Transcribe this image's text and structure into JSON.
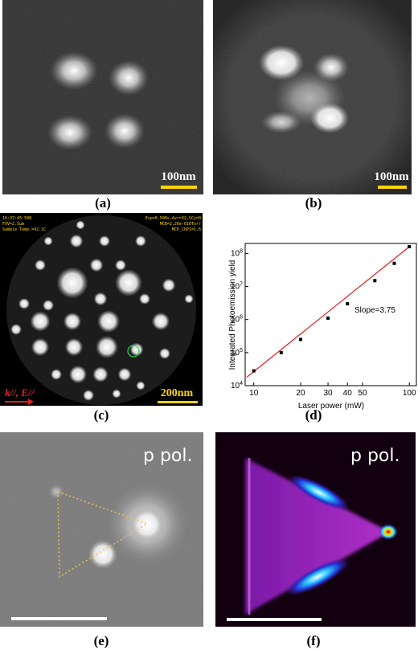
{
  "panels": {
    "a": {
      "label": "(a)",
      "scale_bar": "100nm"
    },
    "b": {
      "label": "(b)",
      "scale_bar": "100nm"
    },
    "c": {
      "label": "(c)",
      "scale_bar": "200nm",
      "direction": "k//, E//",
      "header": [
        "16:37:45:598",
        "FOV=2.5µm",
        "Sample Temp.=42.1C",
        "Exp=0.500s,Avr=32,SCy=0",
        "MCB=2.26e-010Torr",
        "MCP_ChP1=1.6"
      ]
    },
    "d": {
      "label": "(d)"
    },
    "e": {
      "label": "(e)",
      "polarization": "p pol."
    },
    "f": {
      "label": "(f)",
      "polarization": "p pol."
    }
  },
  "chart_data": {
    "type": "scatter",
    "x_label": "Laser power (mW)",
    "y_label": "Integrated Photoemission yield",
    "annotation": "Slope=3.75",
    "x": [
      10,
      15,
      20,
      30,
      40,
      60,
      80,
      100
    ],
    "values": [
      28000,
      100000,
      250000,
      1100000,
      3000000,
      15000000,
      50000000,
      160000000
    ],
    "color": "#000000",
    "fit": {
      "x": [
        9,
        100
      ],
      "values": [
        18000,
        160000000
      ],
      "color": "#e02020"
    },
    "xscale": "log",
    "yscale": "log",
    "xlim": [
      8.8,
      111
    ],
    "ylim": [
      10000,
      200000000
    ],
    "xticks": [
      10,
      20,
      30,
      40,
      50,
      100
    ],
    "yticks": [
      {
        "value": 10000,
        "label": "10^4"
      },
      {
        "value": 100000,
        "label": "10^5"
      },
      {
        "value": 1000000,
        "label": "10^6"
      },
      {
        "value": 10000000,
        "label": "10^7"
      },
      {
        "value": 100000000,
        "label": "10^8"
      }
    ]
  }
}
